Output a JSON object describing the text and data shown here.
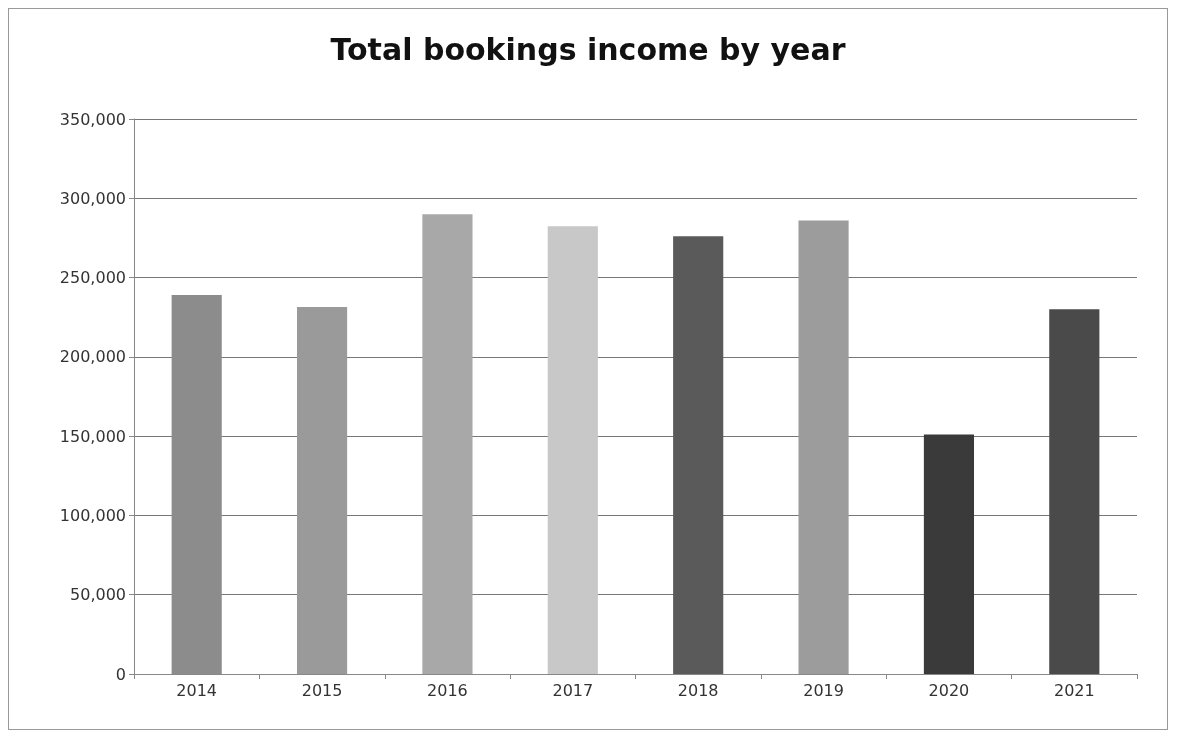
{
  "chart_data": {
    "type": "bar",
    "title": "Total bookings income by year",
    "categories": [
      "2014",
      "2015",
      "2016",
      "2017",
      "2018",
      "2019",
      "2020",
      "2021"
    ],
    "values": [
      239000,
      231500,
      290000,
      282400,
      276000,
      286000,
      151000,
      230000
    ],
    "colors": [
      "#8c8c8c",
      "#9a9a9a",
      "#a8a8a8",
      "#c8c8c8",
      "#5a5a5a",
      "#9c9c9c",
      "#3a3a3a",
      "#4a4a4a"
    ],
    "ylim": [
      0,
      350000
    ],
    "yticks": [
      0,
      {
        "value": 50000,
        "label": "50,000"
      },
      {
        "value": 100000,
        "label": "100,000"
      },
      {
        "value": 150000,
        "label": "150,000"
      },
      {
        "value": 200000,
        "label": "200,000"
      },
      {
        "value": 250000,
        "label": "250,000"
      },
      {
        "value": 300000,
        "label": "300,000"
      },
      {
        "value": 350000,
        "label": "350,000"
      }
    ],
    "grid": "y"
  }
}
